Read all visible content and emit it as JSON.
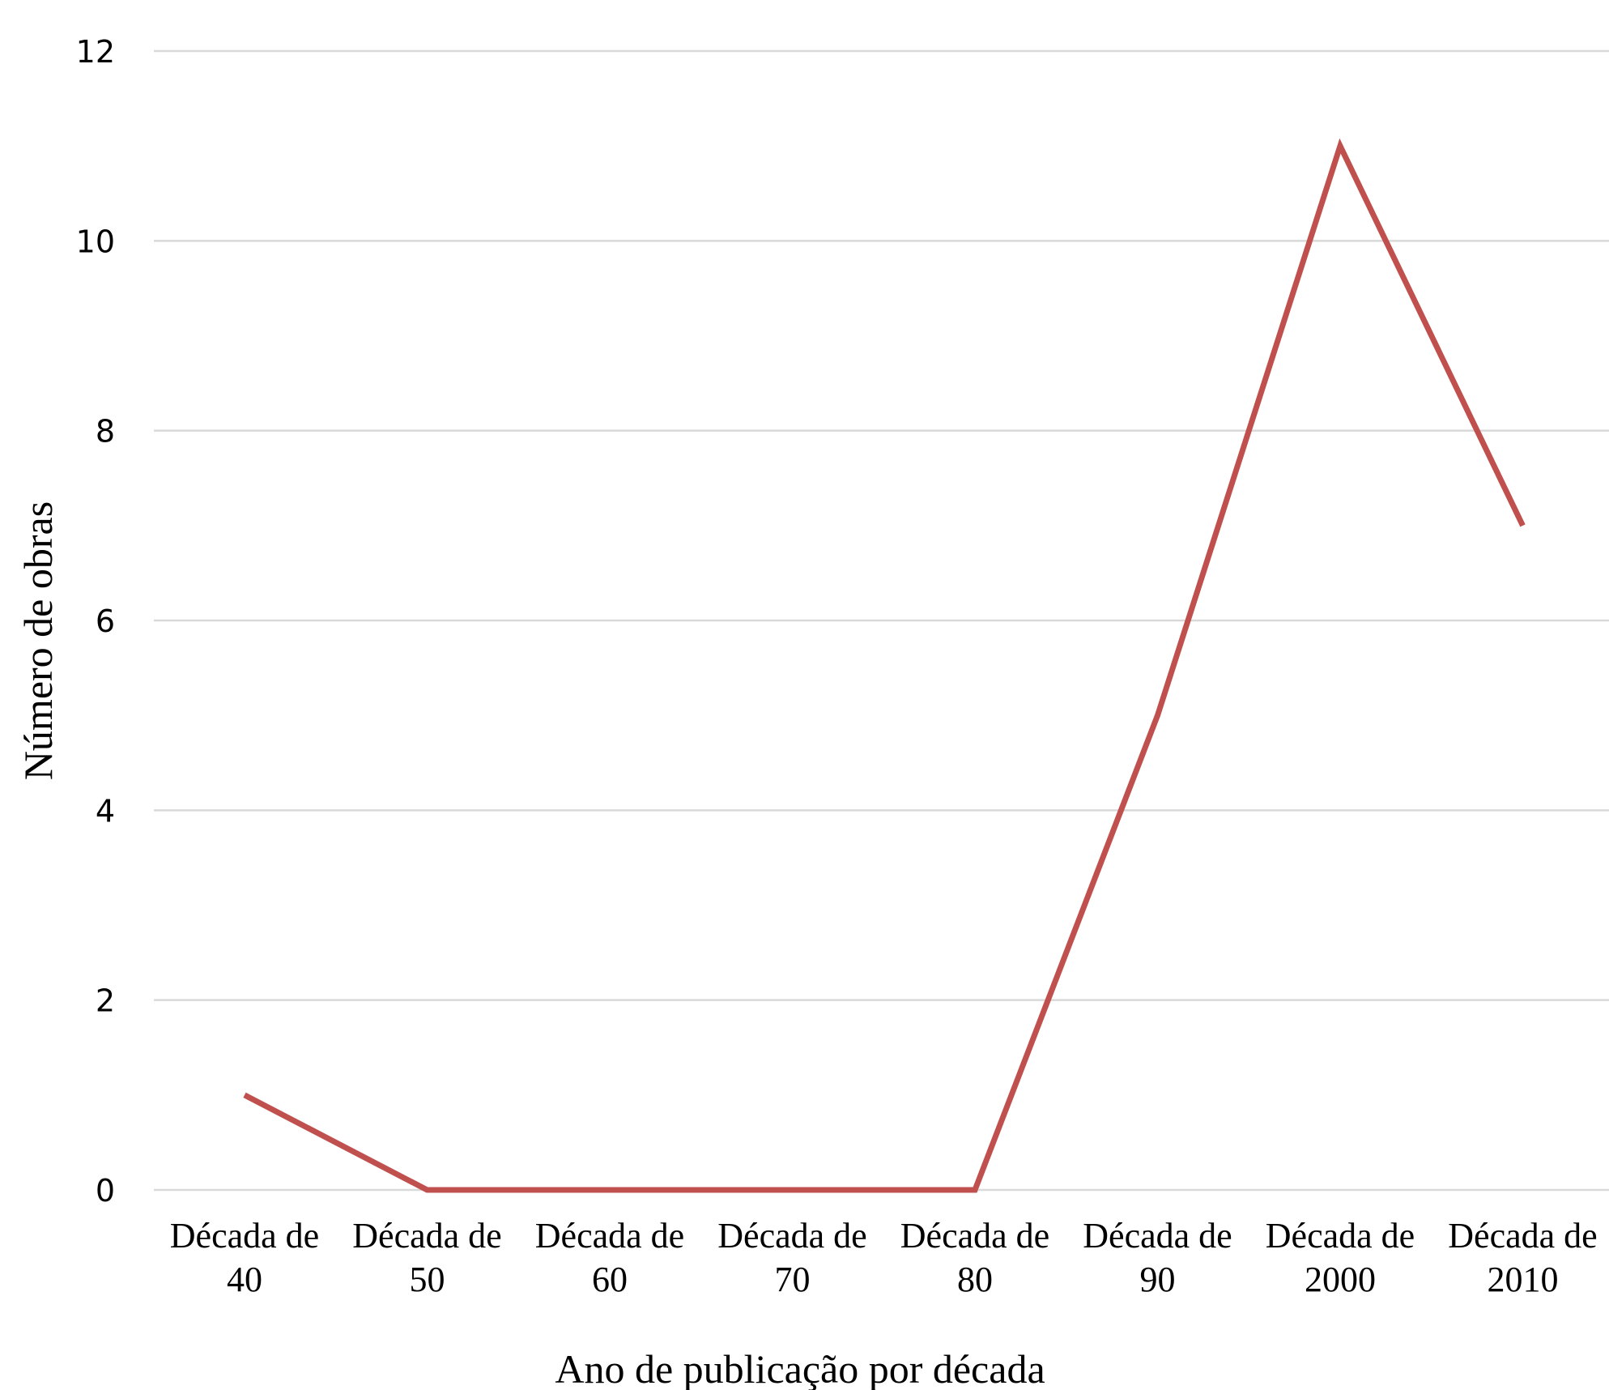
{
  "chart_data": {
    "type": "line",
    "categories": [
      [
        "Década de",
        "40"
      ],
      [
        "Década de",
        "50"
      ],
      [
        "Década de",
        "60"
      ],
      [
        "Década de",
        "70"
      ],
      [
        "Década de",
        "80"
      ],
      [
        "Década de",
        "90"
      ],
      [
        "Década de",
        "2000"
      ],
      [
        "Década de",
        "2010"
      ]
    ],
    "series": [
      {
        "values": [
          1,
          0,
          0,
          0,
          0,
          5,
          11,
          7
        ],
        "color": "#c0504d"
      }
    ],
    "xlabel": "Ano de publicação por década",
    "ylabel": "Número de obras",
    "ylim": [
      0,
      12
    ],
    "yticks": [
      0,
      2,
      4,
      6,
      8,
      10,
      12
    ],
    "grid": true,
    "legend": "none"
  }
}
